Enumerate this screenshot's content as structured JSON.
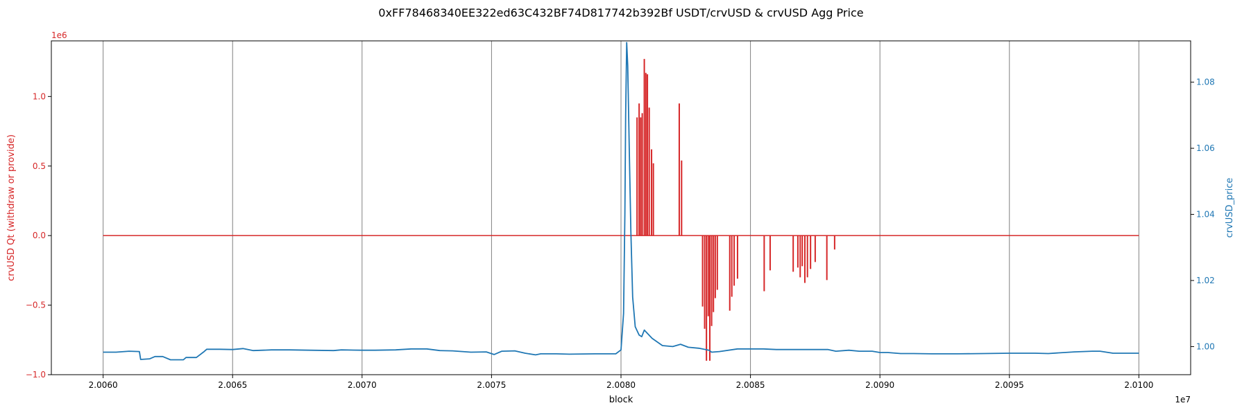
{
  "chart_data": {
    "type": "line",
    "title": "0xFF78468340EE322ed63C432BF74D817742b392Bf USDT/crvUSD & crvUSD Agg Price",
    "xlabel": "block",
    "x_offset_label": "1e7",
    "xlim": [
      20058000,
      20102000
    ],
    "x_ticks": [
      20060000,
      20065000,
      20070000,
      20075000,
      20080000,
      20085000,
      20090000,
      20095000,
      20100000
    ],
    "x_tick_labels": [
      "2.0060",
      "2.0065",
      "2.0070",
      "2.0075",
      "2.0080",
      "2.0085",
      "2.0090",
      "2.0095",
      "2.0100"
    ],
    "grid": "vertical",
    "left_axis": {
      "label": "crvUSD Qt (withdraw or provide)",
      "offset_label": "1e6",
      "color": "#d62728",
      "ylim": [
        -1.0,
        1.4
      ],
      "ticks": [
        -1.0,
        -0.5,
        0.0,
        0.5,
        1.0
      ],
      "tick_labels": [
        "−1.0",
        "−0.5",
        "0.0",
        "0.5",
        "1.0"
      ]
    },
    "right_axis": {
      "label": "crvUSD_price",
      "color": "#1f77b4",
      "ylim": [
        0.9915,
        1.0925
      ],
      "ticks": [
        1.0,
        1.02,
        1.04,
        1.06,
        1.08
      ],
      "tick_labels": [
        "1.00",
        "1.02",
        "1.04",
        "1.06",
        "1.08"
      ]
    },
    "series": [
      {
        "axis": "left",
        "color": "#d62728",
        "style": "spikes",
        "baseline": 0,
        "x_range": [
          20060000,
          20100000
        ],
        "x": [
          20080620,
          20080700,
          20080760,
          20080820,
          20080900,
          20080960,
          20081020,
          20081090,
          20081180,
          20081250,
          20081330,
          20082250,
          20082340,
          20083150,
          20083230,
          20083300,
          20083370,
          20083430,
          20083500,
          20083570,
          20083640,
          20083720,
          20084200,
          20084280,
          20084370,
          20084500,
          20085530,
          20085760,
          20086650,
          20086830,
          20086920,
          20087000,
          20087100,
          20087200,
          20087320,
          20087500,
          20087950,
          20088250
        ],
        "y": [
          0.85,
          0.95,
          0.85,
          0.88,
          1.27,
          1.17,
          1.16,
          0.92,
          0.62,
          0.52,
          0.0,
          0.95,
          0.54,
          -0.51,
          -0.67,
          -0.9,
          -0.58,
          -0.9,
          -0.65,
          -0.55,
          -0.45,
          -0.39,
          -0.54,
          -0.44,
          -0.36,
          -0.31,
          -0.4,
          -0.25,
          -0.26,
          -0.23,
          -0.3,
          -0.22,
          -0.34,
          -0.3,
          -0.24,
          -0.19,
          -0.32,
          -0.1
        ]
      },
      {
        "axis": "right",
        "color": "#1f77b4",
        "style": "line",
        "x": [
          20060000,
          20060500,
          20061000,
          20061400,
          20061450,
          20061800,
          20062000,
          20062300,
          20062600,
          20063100,
          20063200,
          20063600,
          20063900,
          20064000,
          20064500,
          20065000,
          20065400,
          20065800,
          20066500,
          20067200,
          20068000,
          20068900,
          20069200,
          20070000,
          20070500,
          20071300,
          20071900,
          20072500,
          20073000,
          20073500,
          20074200,
          20074800,
          20075100,
          20075400,
          20075900,
          20076300,
          20076700,
          20076900,
          20077500,
          20078000,
          20079000,
          20079800,
          20080000,
          20080100,
          20080150,
          20080180,
          20080220,
          20080260,
          20080320,
          20080380,
          20080450,
          20080550,
          20080700,
          20080800,
          20080900,
          20081200,
          20081600,
          20082000,
          20082300,
          20082600,
          20083000,
          20083400,
          20083500,
          20083800,
          20084500,
          20085000,
          20085500,
          20086000,
          20087000,
          20088000,
          20088300,
          20088800,
          20089200,
          20089700,
          20090000,
          20090300,
          20090800,
          20091300,
          20092000,
          20093000,
          20094000,
          20095000,
          20096000,
          20096500,
          20097500,
          20098200,
          20098500,
          20099000,
          20100000
        ],
        "y": [
          0.9983,
          0.9983,
          0.9986,
          0.9985,
          0.9961,
          0.9963,
          0.997,
          0.997,
          0.996,
          0.996,
          0.9967,
          0.9967,
          0.9985,
          0.9992,
          0.9992,
          0.9991,
          0.9994,
          0.9988,
          0.999,
          0.999,
          0.9989,
          0.9988,
          0.999,
          0.9989,
          0.9989,
          0.999,
          0.9993,
          0.9993,
          0.9988,
          0.9987,
          0.9983,
          0.9984,
          0.9976,
          0.9986,
          0.9987,
          0.998,
          0.9975,
          0.9978,
          0.9978,
          0.9977,
          0.9978,
          0.9978,
          0.999,
          1.01,
          1.04,
          1.07,
          1.092,
          1.085,
          1.06,
          1.035,
          1.015,
          1.006,
          1.0035,
          1.003,
          1.005,
          1.0025,
          1.0003,
          1.0,
          1.0007,
          0.9998,
          0.9995,
          0.9989,
          0.9983,
          0.9985,
          0.9993,
          0.9993,
          0.9993,
          0.9991,
          0.9991,
          0.9991,
          0.9986,
          0.9989,
          0.9986,
          0.9986,
          0.9982,
          0.9982,
          0.9979,
          0.9979,
          0.9978,
          0.9978,
          0.9979,
          0.998,
          0.998,
          0.9979,
          0.9984,
          0.9986,
          0.9986,
          0.998,
          0.998
        ]
      }
    ]
  }
}
